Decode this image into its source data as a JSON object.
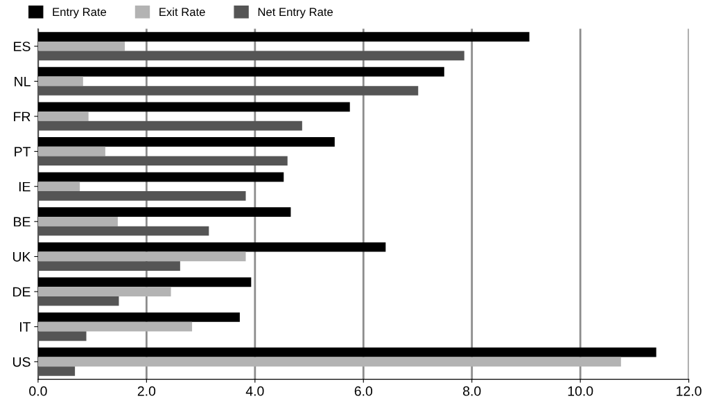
{
  "chart_data": {
    "type": "bar",
    "orientation": "horizontal",
    "categories": [
      "ES",
      "NL",
      "FR",
      "PT",
      "IE",
      "BE",
      "UK",
      "DE",
      "IT",
      "US"
    ],
    "series": [
      {
        "name": "Entry Rate",
        "color": "#000000",
        "values": [
          9.06,
          7.49,
          5.75,
          5.47,
          4.53,
          4.66,
          6.41,
          3.93,
          3.72,
          11.4
        ]
      },
      {
        "name": "Exit Rate",
        "color": "#b3b3b3",
        "values": [
          1.6,
          0.83,
          0.93,
          1.24,
          0.77,
          1.47,
          3.83,
          2.45,
          2.84,
          10.75
        ]
      },
      {
        "name": "Net Entry Rate",
        "color": "#555555",
        "values": [
          7.86,
          7.01,
          4.87,
          4.6,
          3.83,
          3.15,
          2.62,
          1.49,
          0.89,
          0.68
        ]
      }
    ],
    "xlim": [
      0,
      12
    ],
    "xticks": [
      {
        "value": 0,
        "label": "0.0"
      },
      {
        "value": 2,
        "label": "2.0"
      },
      {
        "value": 4,
        "label": "4.0"
      },
      {
        "value": 6,
        "label": "6.0"
      },
      {
        "value": 8,
        "label": "8.0"
      },
      {
        "value": 10,
        "label": "10.0"
      },
      {
        "value": 12,
        "label": "12.0"
      }
    ],
    "grid": "x",
    "legend": "top left"
  }
}
